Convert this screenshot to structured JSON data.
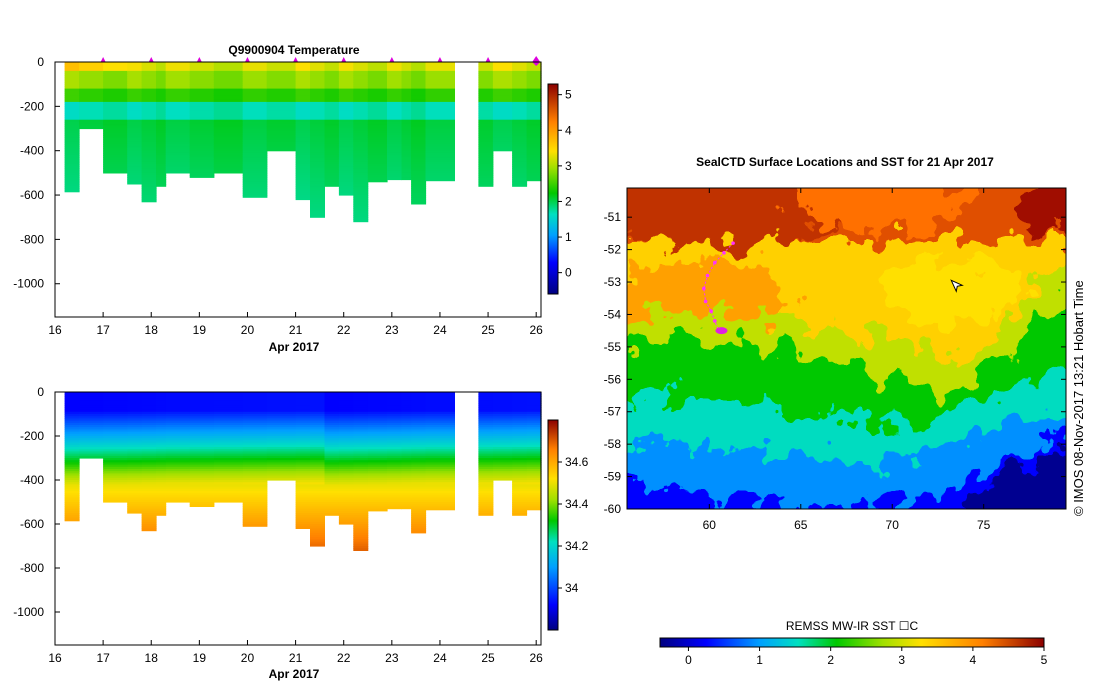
{
  "chart_data": [
    {
      "id": "temperature-section",
      "type": "heatmap",
      "title": "Q9900904  Temperature",
      "xlabel": "Apr 2017",
      "x_ticks": [
        "16",
        "17",
        "18",
        "19",
        "20",
        "21",
        "22",
        "23",
        "24",
        "25",
        "26"
      ],
      "xlim": [
        16,
        26.1
      ],
      "ylim": [
        -1150,
        0
      ],
      "y_ticks": [
        "0",
        "-200",
        "-400",
        "-600",
        "-800",
        "-1000"
      ],
      "colorbar": {
        "ticks": [
          "0",
          "1",
          "2",
          "3",
          "4",
          "5"
        ],
        "range": [
          -0.6,
          5.3
        ]
      },
      "profile_markers": [
        17,
        18,
        19,
        20,
        21,
        22,
        23,
        24,
        25,
        26
      ],
      "profiles": [
        {
          "x0": 16.2,
          "x1": 16.5,
          "max_depth": 585
        },
        {
          "x0": 16.5,
          "x1": 17.0,
          "max_depth": 300
        },
        {
          "x0": 17.0,
          "x1": 17.5,
          "max_depth": 500
        },
        {
          "x0": 17.5,
          "x1": 17.8,
          "max_depth": 550
        },
        {
          "x0": 17.8,
          "x1": 18.1,
          "max_depth": 630
        },
        {
          "x0": 18.1,
          "x1": 18.3,
          "max_depth": 560
        },
        {
          "x0": 18.3,
          "x1": 18.8,
          "max_depth": 500
        },
        {
          "x0": 18.8,
          "x1": 19.3,
          "max_depth": 520
        },
        {
          "x0": 19.3,
          "x1": 19.9,
          "max_depth": 500
        },
        {
          "x0": 19.9,
          "x1": 20.4,
          "max_depth": 610
        },
        {
          "x0": 20.4,
          "x1": 21.0,
          "max_depth": 400
        },
        {
          "x0": 21.0,
          "x1": 21.3,
          "max_depth": 620
        },
        {
          "x0": 21.3,
          "x1": 21.6,
          "max_depth": 700
        },
        {
          "x0": 21.6,
          "x1": 21.9,
          "max_depth": 560
        },
        {
          "x0": 21.9,
          "x1": 22.2,
          "max_depth": 600
        },
        {
          "x0": 22.2,
          "x1": 22.5,
          "max_depth": 720
        },
        {
          "x0": 22.5,
          "x1": 22.9,
          "max_depth": 540
        },
        {
          "x0": 22.9,
          "x1": 23.2,
          "max_depth": 530
        },
        {
          "x0": 23.2,
          "x1": 23.4,
          "max_depth": 530
        },
        {
          "x0": 23.4,
          "x1": 23.7,
          "max_depth": 640
        },
        {
          "x0": 23.7,
          "x1": 24.3,
          "max_depth": 535
        },
        {
          "x0": 24.8,
          "x1": 25.1,
          "max_depth": 560
        },
        {
          "x0": 25.1,
          "x1": 25.5,
          "max_depth": 400
        },
        {
          "x0": 25.5,
          "x1": 25.8,
          "max_depth": 560
        },
        {
          "x0": 25.8,
          "x1": 26.1,
          "max_depth": 535
        }
      ]
    },
    {
      "id": "salinity-section",
      "type": "heatmap",
      "xlabel": "Apr 2017",
      "x_ticks": [
        "16",
        "17",
        "18",
        "19",
        "20",
        "21",
        "22",
        "23",
        "24",
        "25",
        "26"
      ],
      "xlim": [
        16,
        26.1
      ],
      "ylim": [
        -1150,
        0
      ],
      "y_ticks": [
        "0",
        "-200",
        "-400",
        "-600",
        "-800",
        "-1000"
      ],
      "colorbar": {
        "ticks": [
          "34",
          "34.2",
          "34.4",
          "34.6"
        ],
        "range": [
          33.8,
          34.8
        ]
      }
    },
    {
      "id": "sst-map",
      "type": "heatmap",
      "title": "SealCTD Surface Locations and SST for 21 Apr 2017",
      "x_ticks": [
        "60",
        "65",
        "70",
        "75"
      ],
      "y_ticks": [
        "-51",
        "-52",
        "-53",
        "-54",
        "-55",
        "-56",
        "-57",
        "-58",
        "-59",
        "-60"
      ],
      "xlim": [
        55.5,
        79.5
      ],
      "ylim": [
        -60,
        -50.1
      ],
      "colorbar": {
        "label": "REMSS MW-IR SST ☐C",
        "ticks": [
          "0",
          "1",
          "2",
          "3",
          "4",
          "5"
        ],
        "range": [
          -0.4,
          5
        ]
      },
      "track_points": [
        [
          61.3,
          -51.8
        ],
        [
          60.8,
          -52.1
        ],
        [
          60.3,
          -52.4
        ],
        [
          59.9,
          -52.8
        ],
        [
          59.7,
          -53.2
        ],
        [
          59.8,
          -53.6
        ],
        [
          60.1,
          -53.9
        ],
        [
          60.3,
          -54.2
        ],
        [
          60.5,
          -54.5
        ]
      ],
      "current_position": [
        60.5,
        -54.5
      ],
      "pointer_position": [
        73.5,
        -53.1
      ]
    }
  ],
  "credit": "©  IMOS 08-Nov-2017 13:21 Hobart Time"
}
